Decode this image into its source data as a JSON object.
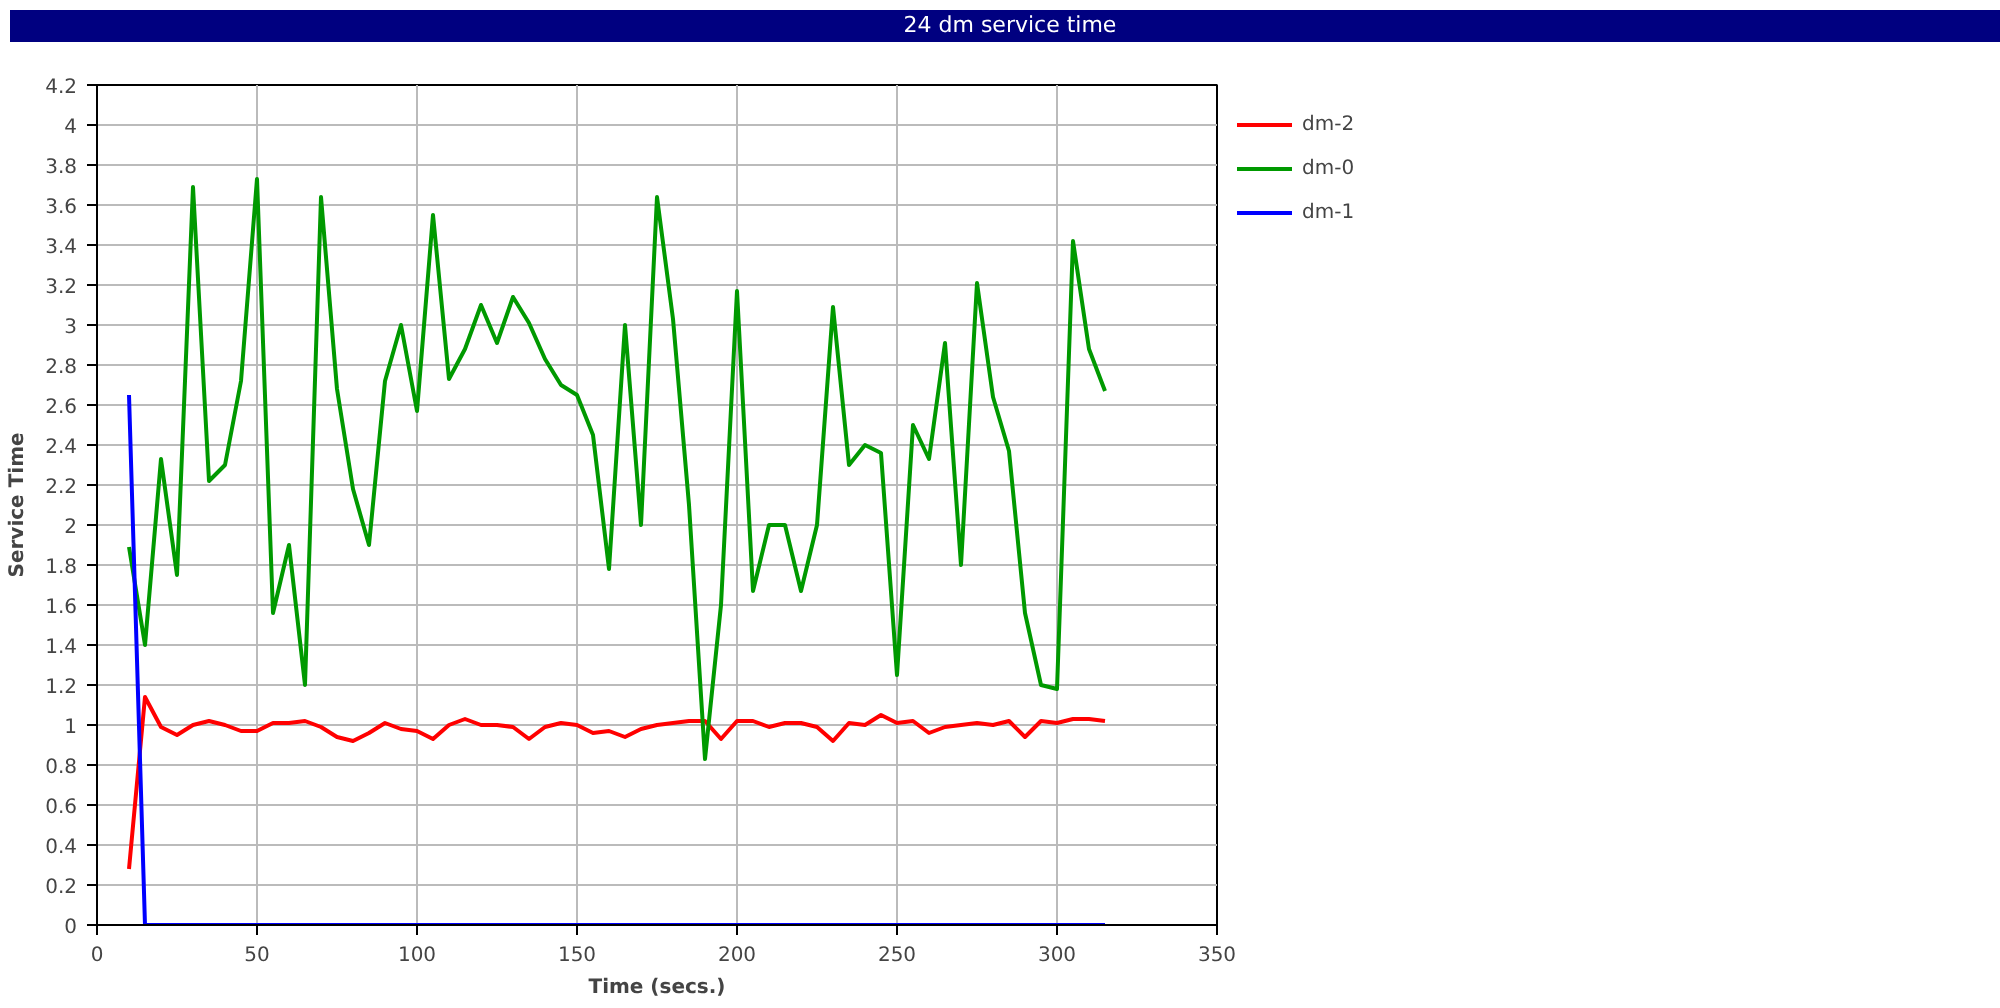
{
  "chart_data": {
    "type": "line",
    "title": "24 dm service time",
    "xlabel": "Time (secs.)",
    "ylabel": "Service Time",
    "x": [
      10,
      15,
      20,
      25,
      30,
      35,
      40,
      45,
      50,
      55,
      60,
      65,
      70,
      75,
      80,
      85,
      90,
      95,
      100,
      105,
      110,
      115,
      120,
      125,
      130,
      135,
      140,
      145,
      150,
      155,
      160,
      165,
      170,
      175,
      180,
      185,
      190,
      195,
      200,
      205,
      210,
      215,
      220,
      225,
      230,
      235,
      240,
      245,
      250,
      255,
      260,
      265,
      270,
      275,
      280,
      285,
      290,
      295,
      300,
      305,
      310,
      315
    ],
    "series": [
      {
        "name": "dm-2",
        "color": "#ff0000",
        "values": [
          0.28,
          1.14,
          0.99,
          0.95,
          1.0,
          1.02,
          1.0,
          0.97,
          0.97,
          1.01,
          1.01,
          1.02,
          0.99,
          0.94,
          0.92,
          0.96,
          1.01,
          0.98,
          0.97,
          0.93,
          1.0,
          1.03,
          1.0,
          1.0,
          0.99,
          0.93,
          0.99,
          1.01,
          1.0,
          0.96,
          0.97,
          0.94,
          0.98,
          1.0,
          1.01,
          1.02,
          1.02,
          0.93,
          1.02,
          1.02,
          0.99,
          1.01,
          1.01,
          0.99,
          0.92,
          1.01,
          1.0,
          1.05,
          1.01,
          1.02,
          0.96,
          0.99,
          1.0,
          1.01,
          1.0,
          1.02,
          0.94,
          1.02,
          1.01,
          1.03,
          1.03,
          1.02
        ]
      },
      {
        "name": "dm-0",
        "color": "#009900",
        "values": [
          1.89,
          1.4,
          2.33,
          1.75,
          3.69,
          2.22,
          2.3,
          2.72,
          3.73,
          1.56,
          1.9,
          1.2,
          3.64,
          2.68,
          2.18,
          1.9,
          2.72,
          3.0,
          2.57,
          3.55,
          2.73,
          2.88,
          3.1,
          2.91,
          3.14,
          3.01,
          2.83,
          2.7,
          2.65,
          2.45,
          1.78,
          3.0,
          2.0,
          3.64,
          3.03,
          2.1,
          0.83,
          1.6,
          3.17,
          1.67,
          2.0,
          2.0,
          1.67,
          2.0,
          3.09,
          2.3,
          2.4,
          2.36,
          1.25,
          2.5,
          2.33,
          2.91,
          1.8,
          3.21,
          2.64,
          2.37,
          1.56,
          1.2,
          1.18,
          3.42,
          2.88,
          2.67
        ]
      },
      {
        "name": "dm-1",
        "color": "#0000ff",
        "x": [
          10,
          15,
          315
        ],
        "values": [
          2.65,
          0,
          0
        ]
      }
    ],
    "xlim": [
      0,
      350
    ],
    "xticks": [
      0,
      50,
      100,
      150,
      200,
      250,
      300,
      350
    ],
    "ylim": [
      0,
      4.2
    ],
    "yticks": [
      0,
      0.2,
      0.4,
      0.6,
      0.8,
      1,
      1.2,
      1.4,
      1.6,
      1.8,
      2,
      2.2,
      2.4,
      2.6,
      2.8,
      3,
      3.2,
      3.4,
      3.6,
      3.8,
      4,
      4.2
    ],
    "grid": true,
    "legend": "top right",
    "marker": "none",
    "line_style": "solid"
  }
}
